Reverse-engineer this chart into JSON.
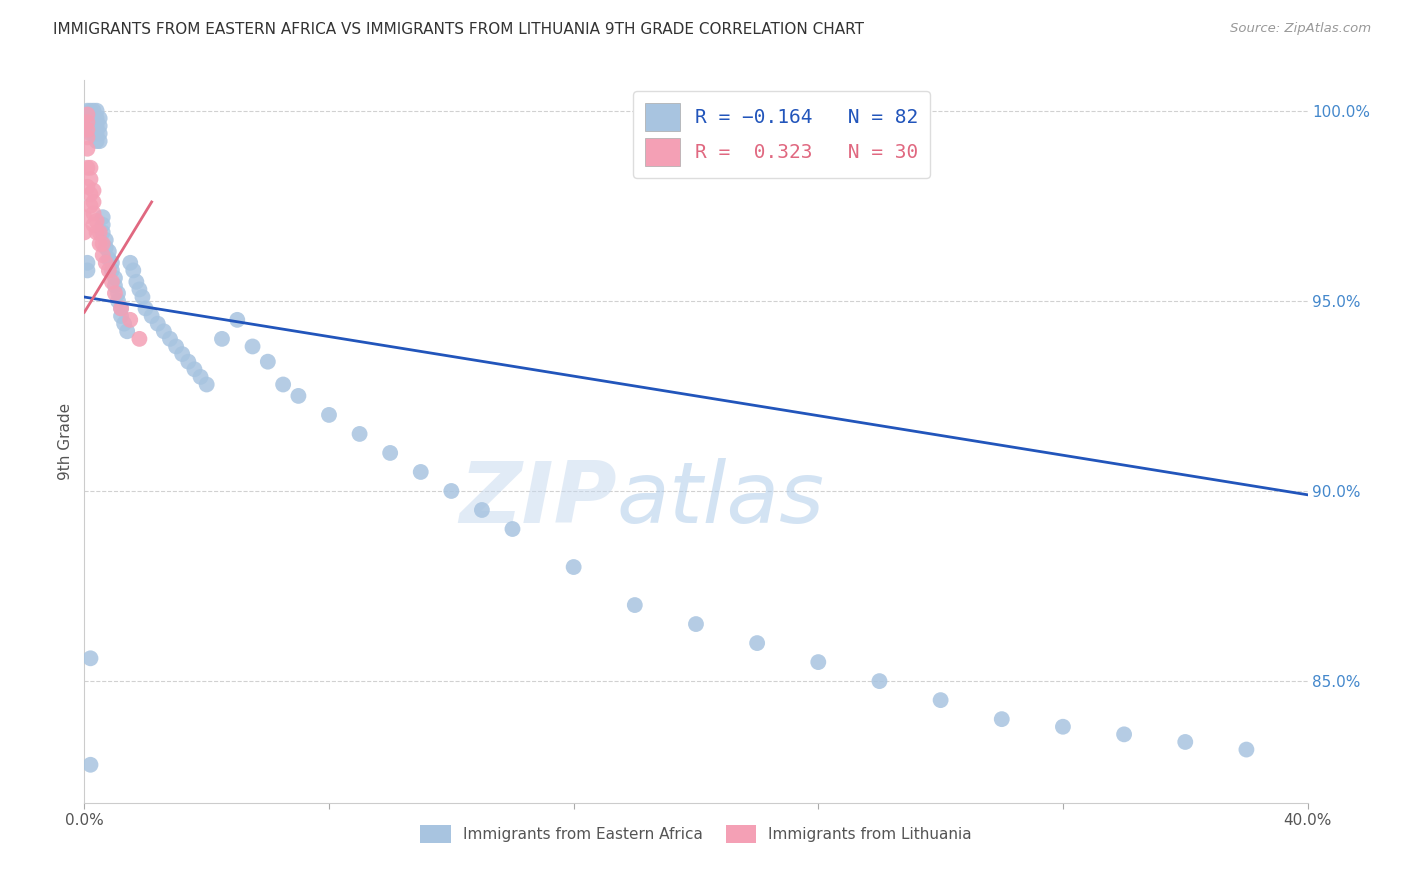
{
  "title": "IMMIGRANTS FROM EASTERN AFRICA VS IMMIGRANTS FROM LITHUANIA 9TH GRADE CORRELATION CHART",
  "source": "Source: ZipAtlas.com",
  "ylabel": "9th Grade",
  "x_min": 0.0,
  "x_max": 0.4,
  "y_min": 0.818,
  "y_max": 1.008,
  "y_ticks": [
    0.85,
    0.9,
    0.95,
    1.0
  ],
  "y_tick_labels": [
    "85.0%",
    "90.0%",
    "95.0%",
    "100.0%"
  ],
  "blue_R": -0.164,
  "blue_N": 82,
  "pink_R": 0.323,
  "pink_N": 30,
  "blue_color": "#a8c4e0",
  "pink_color": "#f4a0b5",
  "blue_line_color": "#2255bb",
  "pink_line_color": "#e06880",
  "legend_label_blue": "Immigrants from Eastern Africa",
  "legend_label_pink": "Immigrants from Lithuania",
  "watermark_zip": "ZIP",
  "watermark_atlas": "atlas",
  "blue_trend_x": [
    0.0,
    0.4
  ],
  "blue_trend_y": [
    0.951,
    0.899
  ],
  "pink_trend_x": [
    0.0,
    0.022
  ],
  "pink_trend_y": [
    0.947,
    0.976
  ],
  "blue_x": [
    0.001,
    0.001,
    0.001,
    0.002,
    0.002,
    0.002,
    0.002,
    0.003,
    0.003,
    0.003,
    0.003,
    0.004,
    0.004,
    0.004,
    0.004,
    0.004,
    0.005,
    0.005,
    0.005,
    0.005,
    0.006,
    0.006,
    0.006,
    0.007,
    0.007,
    0.008,
    0.008,
    0.009,
    0.009,
    0.01,
    0.01,
    0.011,
    0.011,
    0.012,
    0.012,
    0.013,
    0.014,
    0.015,
    0.016,
    0.017,
    0.018,
    0.019,
    0.02,
    0.022,
    0.024,
    0.026,
    0.028,
    0.03,
    0.032,
    0.034,
    0.036,
    0.038,
    0.04,
    0.045,
    0.05,
    0.055,
    0.06,
    0.065,
    0.07,
    0.08,
    0.09,
    0.1,
    0.11,
    0.12,
    0.13,
    0.14,
    0.16,
    0.18,
    0.2,
    0.22,
    0.24,
    0.26,
    0.28,
    0.3,
    0.32,
    0.34,
    0.36,
    0.38,
    0.001,
    0.001,
    0.002,
    0.002
  ],
  "blue_y": [
    0.998,
    1.0,
    0.996,
    1.0,
    0.998,
    0.996,
    0.994,
    1.0,
    0.998,
    0.996,
    0.994,
    1.0,
    0.998,
    0.996,
    0.994,
    0.992,
    0.998,
    0.996,
    0.994,
    0.992,
    0.972,
    0.97,
    0.968,
    0.966,
    0.964,
    0.963,
    0.961,
    0.96,
    0.958,
    0.956,
    0.954,
    0.952,
    0.95,
    0.948,
    0.946,
    0.944,
    0.942,
    0.96,
    0.958,
    0.955,
    0.953,
    0.951,
    0.948,
    0.946,
    0.944,
    0.942,
    0.94,
    0.938,
    0.936,
    0.934,
    0.932,
    0.93,
    0.928,
    0.94,
    0.945,
    0.938,
    0.934,
    0.928,
    0.925,
    0.92,
    0.915,
    0.91,
    0.905,
    0.9,
    0.895,
    0.89,
    0.88,
    0.87,
    0.865,
    0.86,
    0.855,
    0.85,
    0.845,
    0.84,
    0.838,
    0.836,
    0.834,
    0.832,
    0.96,
    0.958,
    0.856,
    0.828
  ],
  "pink_x": [
    0.0,
    0.0,
    0.001,
    0.001,
    0.001,
    0.001,
    0.001,
    0.001,
    0.001,
    0.002,
    0.002,
    0.002,
    0.002,
    0.003,
    0.003,
    0.003,
    0.003,
    0.004,
    0.004,
    0.005,
    0.005,
    0.006,
    0.006,
    0.007,
    0.008,
    0.009,
    0.01,
    0.012,
    0.015,
    0.018
  ],
  "pink_y": [
    0.968,
    0.972,
    0.98,
    0.985,
    0.99,
    0.993,
    0.995,
    0.997,
    0.999,
    0.975,
    0.978,
    0.982,
    0.985,
    0.97,
    0.973,
    0.976,
    0.979,
    0.968,
    0.971,
    0.965,
    0.968,
    0.962,
    0.965,
    0.96,
    0.958,
    0.955,
    0.952,
    0.948,
    0.945,
    0.94
  ]
}
